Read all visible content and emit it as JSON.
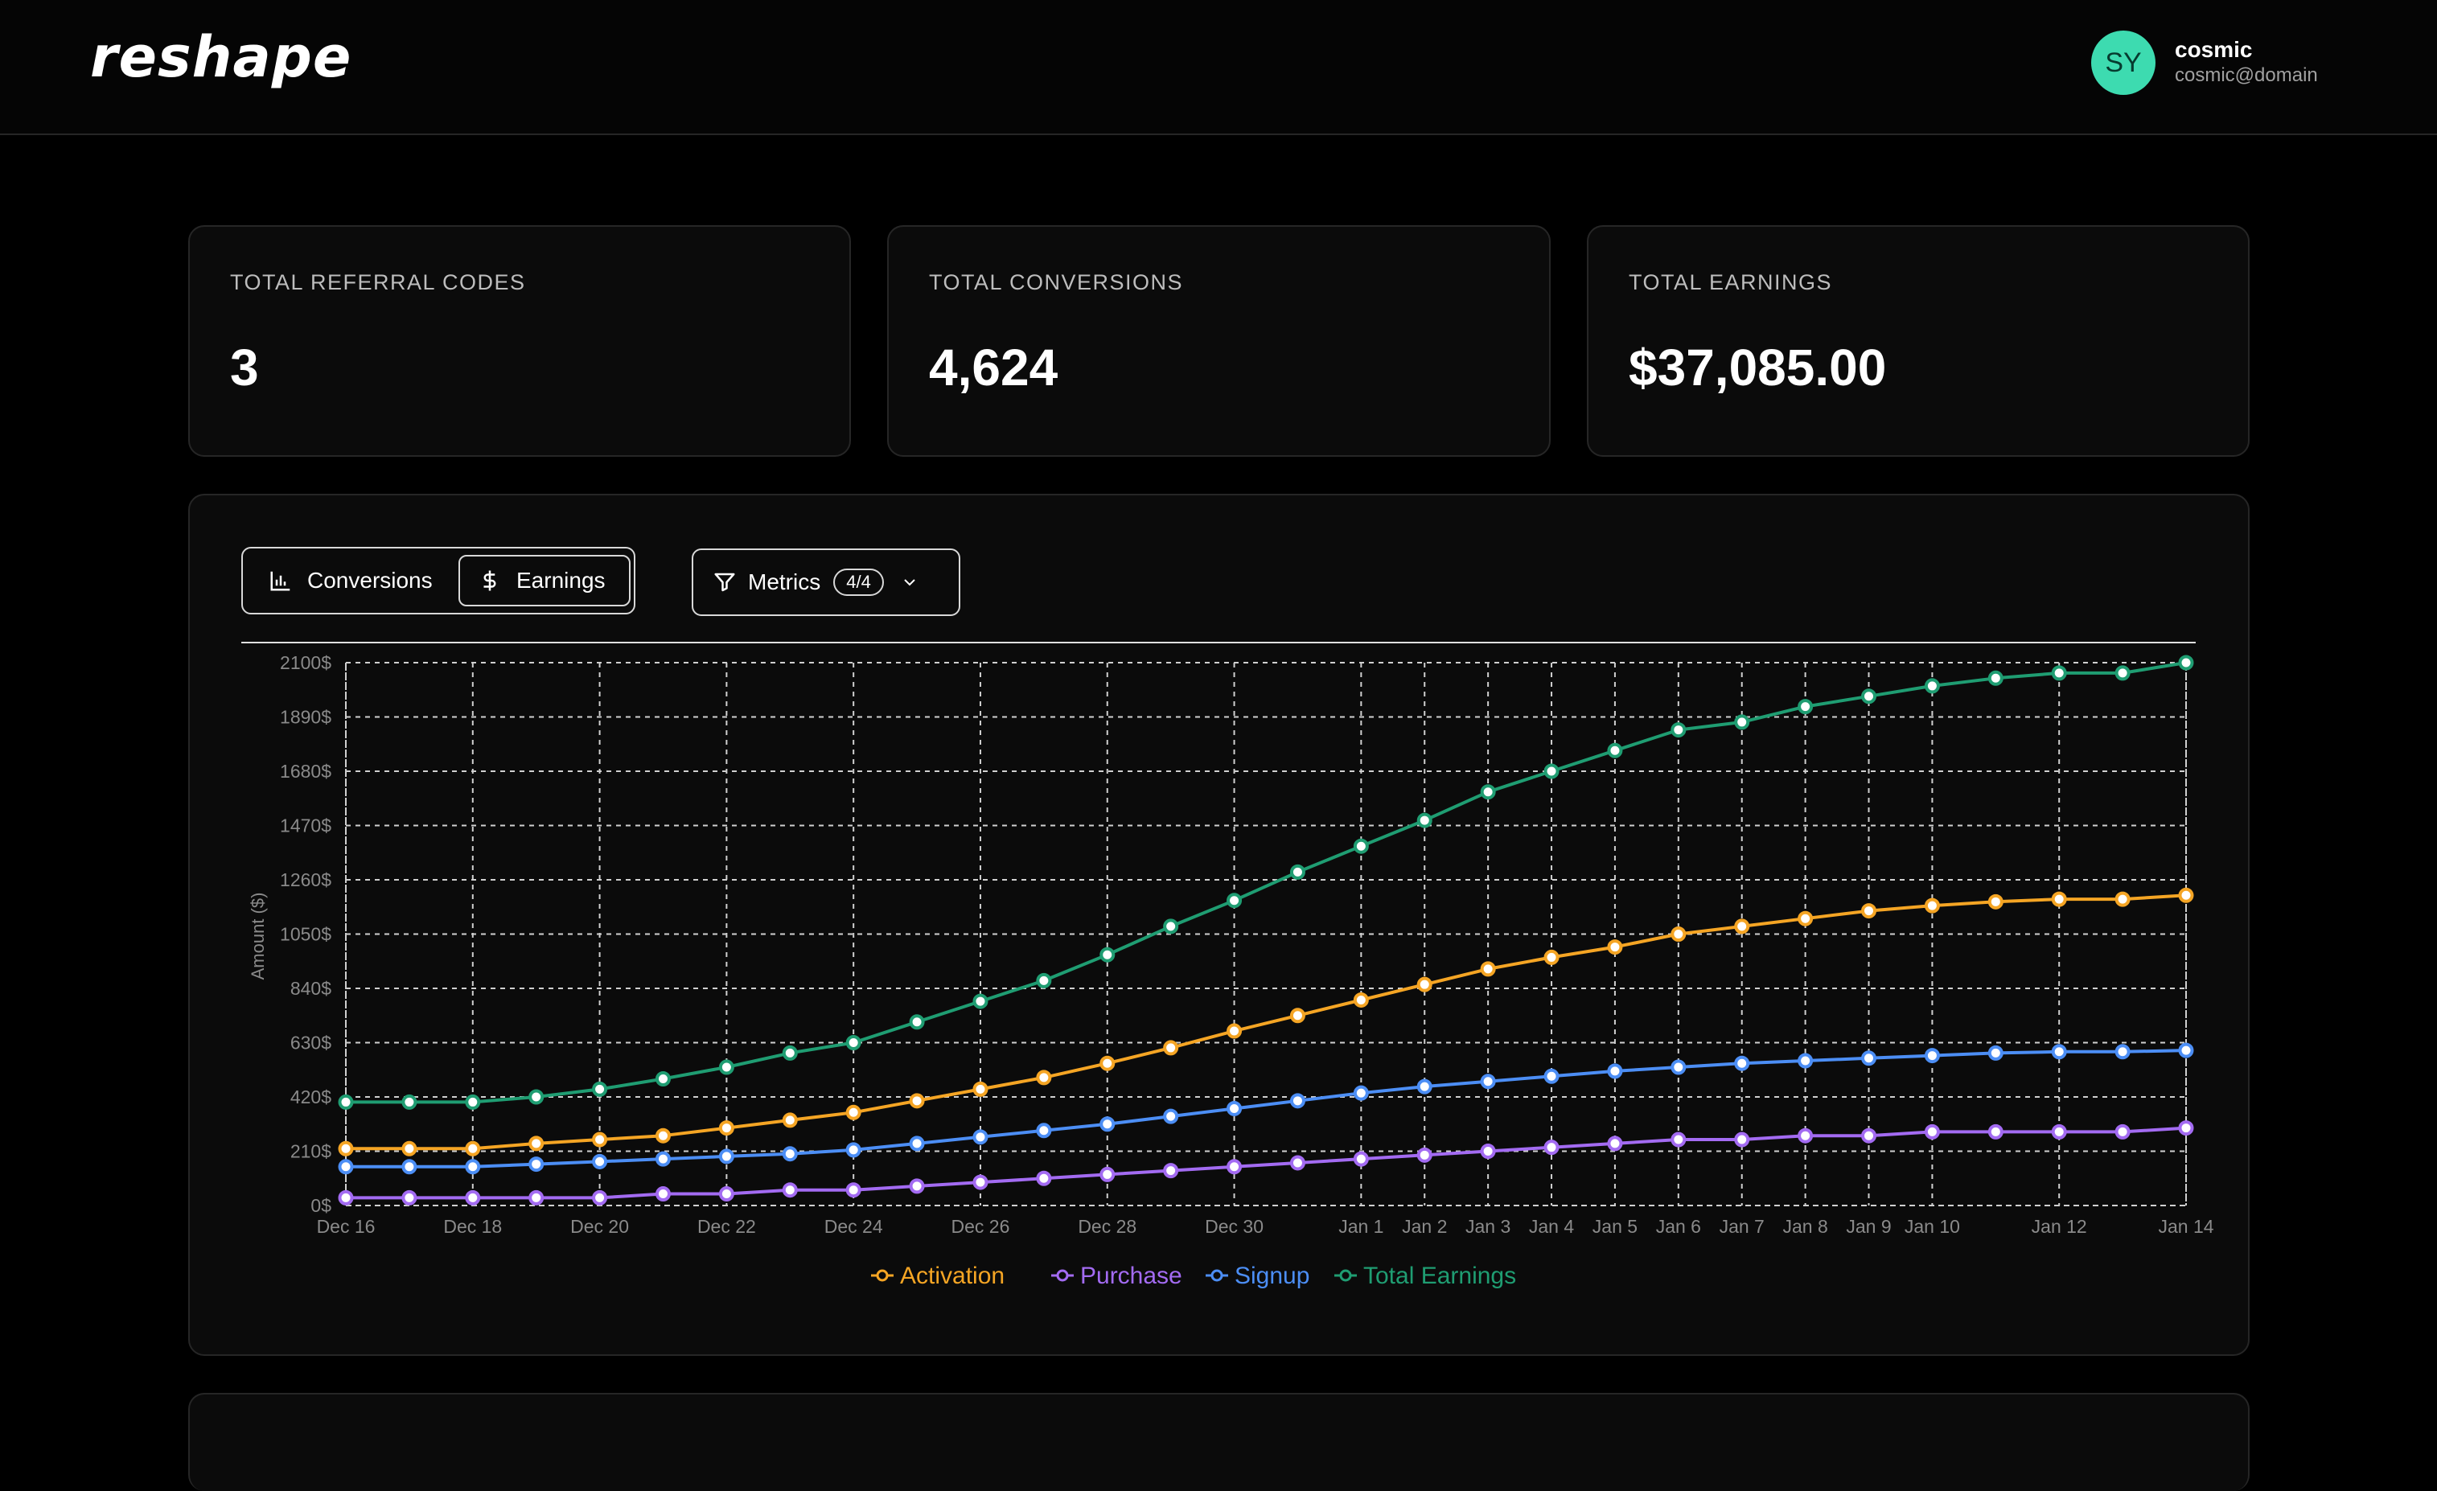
{
  "app": {
    "logo": "reshape"
  },
  "user": {
    "initials": "SY",
    "name": "cosmic",
    "email": "cosmic@domain"
  },
  "stats": [
    {
      "label": "TOTAL REFERRAL CODES",
      "value": "3"
    },
    {
      "label": "TOTAL CONVERSIONS",
      "value": "4,624"
    },
    {
      "label": "TOTAL EARNINGS",
      "value": "$37,085.00"
    }
  ],
  "toolbar": {
    "conversions_label": "Conversions",
    "earnings_label": "Earnings",
    "active_tab": "Earnings",
    "metrics_label": "Metrics",
    "metrics_count": "4/4"
  },
  "colors": {
    "activation": "#f5a524",
    "purchase": "#a36bf2",
    "signup": "#4c8ef5",
    "total_earnings": "#1f9d72"
  },
  "chart_data": {
    "type": "line",
    "ylabel": "Amount ($)",
    "ylim": [
      0,
      2100
    ],
    "yticks": [
      0,
      210,
      420,
      630,
      840,
      1050,
      1260,
      1470,
      1680,
      1890,
      2100
    ],
    "ytick_suffix": "$",
    "grid": true,
    "legend_position": "bottom",
    "x": [
      "Dec 16",
      "Dec 17",
      "Dec 18",
      "Dec 19",
      "Dec 20",
      "Dec 21",
      "Dec 22",
      "Dec 23",
      "Dec 24",
      "Dec 25",
      "Dec 26",
      "Dec 27",
      "Dec 28",
      "Dec 29",
      "Dec 30",
      "Dec 31",
      "Jan 1",
      "Jan 2",
      "Jan 3",
      "Jan 4",
      "Jan 5",
      "Jan 6",
      "Jan 7",
      "Jan 8",
      "Jan 9",
      "Jan 10",
      "Jan 11",
      "Jan 12",
      "Jan 13",
      "Jan 14"
    ],
    "xtick_labels": [
      "Dec 16",
      "Dec 18",
      "Dec 20",
      "Dec 22",
      "Dec 24",
      "Dec 26",
      "Dec 28",
      "Dec 30",
      "Jan 1",
      "Jan 2",
      "Jan 3",
      "Jan 4",
      "Jan 5",
      "Jan 6",
      "Jan 7",
      "Jan 8",
      "Jan 9",
      "Jan 10",
      "Jan 12",
      "Jan 14"
    ],
    "series": [
      {
        "name": "Activation",
        "color": "#f5a524",
        "values": [
          220,
          220,
          220,
          240,
          255,
          270,
          300,
          330,
          360,
          405,
          450,
          495,
          550,
          610,
          675,
          735,
          795,
          855,
          915,
          960,
          1000,
          1050,
          1080,
          1110,
          1140,
          1160,
          1175,
          1185,
          1185,
          1200
        ]
      },
      {
        "name": "Purchase",
        "color": "#a36bf2",
        "values": [
          30,
          30,
          30,
          30,
          30,
          45,
          45,
          60,
          60,
          75,
          90,
          105,
          120,
          135,
          150,
          165,
          180,
          195,
          210,
          225,
          240,
          255,
          255,
          270,
          270,
          285,
          285,
          285,
          285,
          300
        ]
      },
      {
        "name": "Signup",
        "color": "#4c8ef5",
        "values": [
          150,
          150,
          150,
          160,
          170,
          180,
          190,
          200,
          215,
          240,
          265,
          290,
          315,
          345,
          375,
          405,
          435,
          460,
          480,
          500,
          520,
          535,
          550,
          560,
          570,
          580,
          590,
          595,
          595,
          600
        ]
      },
      {
        "name": "Total Earnings",
        "color": "#1f9d72",
        "values": [
          400,
          400,
          400,
          420,
          450,
          490,
          535,
          590,
          630,
          710,
          790,
          870,
          970,
          1080,
          1180,
          1290,
          1390,
          1490,
          1600,
          1680,
          1760,
          1840,
          1870,
          1930,
          1970,
          2010,
          2040,
          2060,
          2060,
          2100
        ]
      }
    ]
  }
}
